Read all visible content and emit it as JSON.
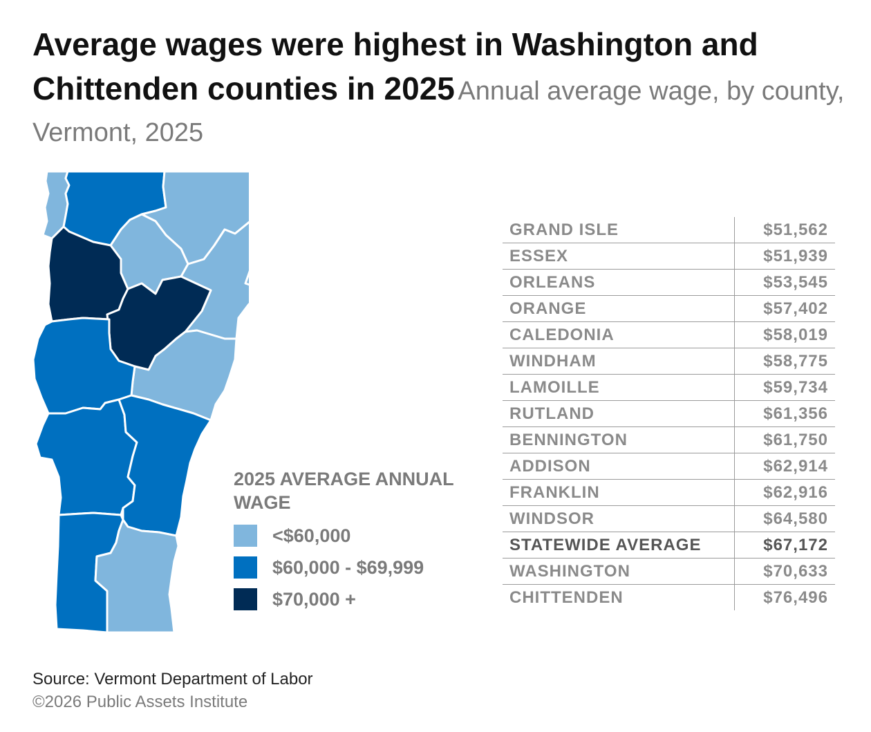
{
  "title": {
    "main": "Average wages were highest in Washington and Chittenden counties in 2025",
    "subtitle": "Annual average wage, by county, Vermont, 2025"
  },
  "colors": {
    "low": "#80b6dd",
    "mid": "#0070c0",
    "high": "#002b55",
    "border": "#ffffff"
  },
  "map": {
    "counties": [
      {
        "name": "Grand Isle",
        "tier": "low"
      },
      {
        "name": "Franklin",
        "tier": "mid"
      },
      {
        "name": "Orleans",
        "tier": "low"
      },
      {
        "name": "Essex",
        "tier": "low"
      },
      {
        "name": "Lamoille",
        "tier": "low"
      },
      {
        "name": "Caledonia",
        "tier": "low"
      },
      {
        "name": "Chittenden",
        "tier": "high"
      },
      {
        "name": "Washington",
        "tier": "high"
      },
      {
        "name": "Orange",
        "tier": "low"
      },
      {
        "name": "Addison",
        "tier": "mid"
      },
      {
        "name": "Rutland",
        "tier": "mid"
      },
      {
        "name": "Windsor",
        "tier": "mid"
      },
      {
        "name": "Bennington",
        "tier": "mid"
      },
      {
        "name": "Windham",
        "tier": "low"
      }
    ]
  },
  "legend": {
    "title": "2025 AVERAGE ANNUAL WAGE",
    "items": [
      {
        "label": "<$60,000",
        "tier": "low"
      },
      {
        "label": "$60,000 - $69,999",
        "tier": "mid"
      },
      {
        "label": "$70,000 +",
        "tier": "high"
      }
    ]
  },
  "table": {
    "rows": [
      {
        "county": "GRAND ISLE",
        "wage": "$51,562"
      },
      {
        "county": "ESSEX",
        "wage": "$51,939"
      },
      {
        "county": "ORLEANS",
        "wage": "$53,545"
      },
      {
        "county": "ORANGE",
        "wage": "$57,402"
      },
      {
        "county": "CALEDONIA",
        "wage": "$58,019"
      },
      {
        "county": "WINDHAM",
        "wage": "$58,775"
      },
      {
        "county": "LAMOILLE",
        "wage": "$59,734"
      },
      {
        "county": "RUTLAND",
        "wage": "$61,356"
      },
      {
        "county": "BENNINGTON",
        "wage": "$61,750"
      },
      {
        "county": "ADDISON",
        "wage": "$62,914"
      },
      {
        "county": "FRANKLIN",
        "wage": "$62,916"
      },
      {
        "county": "WINDSOR",
        "wage": "$64,580"
      },
      {
        "county": "STATEWIDE AVERAGE",
        "wage": "$67,172",
        "highlight": true
      },
      {
        "county": "WASHINGTON",
        "wage": "$70,633"
      },
      {
        "county": "CHITTENDEN",
        "wage": "$76,496"
      }
    ]
  },
  "footer": {
    "source": "Source: Vermont Department of Labor",
    "copyright": "©2026 Public Assets Institute"
  }
}
